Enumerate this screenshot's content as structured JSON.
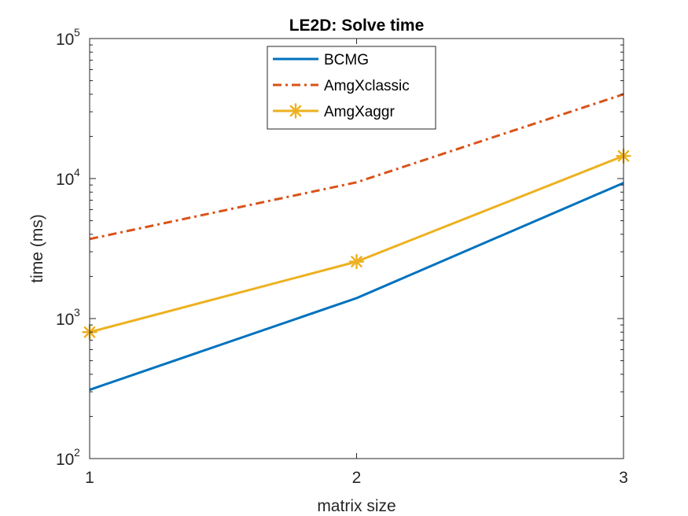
{
  "chart_data": {
    "type": "line",
    "title": "LE2D: Solve time",
    "xlabel": "matrix size",
    "ylabel": "time (ms)",
    "x": [
      1,
      2,
      3
    ],
    "xlim": [
      1,
      3
    ],
    "ylim": [
      100,
      100000
    ],
    "yscale": "log",
    "xticks": [
      {
        "value": 1,
        "label": "1"
      },
      {
        "value": 2,
        "label": "2"
      },
      {
        "value": 3,
        "label": "3"
      }
    ],
    "yticks": [
      {
        "value": 100,
        "base": "10",
        "exp": "2"
      },
      {
        "value": 1000,
        "base": "10",
        "exp": "3"
      },
      {
        "value": 10000,
        "base": "10",
        "exp": "4"
      },
      {
        "value": 100000,
        "base": "10",
        "exp": "5"
      }
    ],
    "grid": false,
    "legend_position": "top-center",
    "series": [
      {
        "name": "BCMG",
        "values": [
          310,
          1400,
          9300
        ],
        "color": "#0072BD",
        "style": "solid",
        "marker": "none"
      },
      {
        "name": "AmgXclassic",
        "values": [
          3700,
          9400,
          40000
        ],
        "color": "#D95319",
        "style": "dashdot",
        "marker": "none"
      },
      {
        "name": "AmgXaggr",
        "values": [
          800,
          2550,
          14500
        ],
        "color": "#EDB120",
        "style": "solid",
        "marker": "asterisk"
      }
    ]
  }
}
